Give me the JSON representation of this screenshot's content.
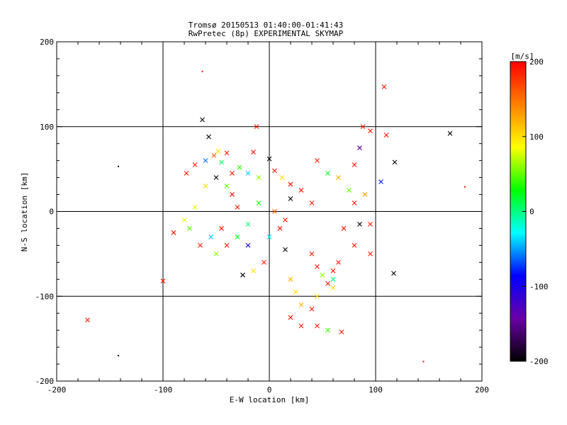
{
  "chart_data": {
    "type": "scatter",
    "title": "Tromsø 20150513 01:40:00-01:41:43",
    "subtitle": "RwPretec (8p) EXPERIMENTAL SKYMAP",
    "xlabel": "E-W location [km]",
    "ylabel": "N-S location [km]",
    "xlim": [
      -200,
      200
    ],
    "ylim": [
      -200,
      200
    ],
    "x_ticks": [
      "-200",
      "-100",
      "0",
      "100",
      "200"
    ],
    "y_ticks": [
      "-200",
      "-100",
      "0",
      "100",
      "200"
    ],
    "grid": true,
    "colorbar": {
      "label": "[m/s]",
      "range": [
        -200,
        200
      ],
      "ticks": [
        "200",
        "100",
        "0",
        "-100",
        "-200"
      ],
      "colors": [
        "#000000",
        "#6a00a8",
        "#0000ff",
        "#00ffff",
        "#00ff00",
        "#ffff00",
        "#ff8000",
        "#ff0000"
      ]
    },
    "markers": [
      {
        "x": -171,
        "y": -128,
        "v": 190,
        "m": "x"
      },
      {
        "x": -100,
        "y": -82,
        "v": 190,
        "m": "x"
      },
      {
        "x": -142,
        "y": -170,
        "v": -200,
        "m": "d"
      },
      {
        "x": -142,
        "y": 53,
        "v": -200,
        "m": "d"
      },
      {
        "x": -63,
        "y": 165,
        "v": 190,
        "m": "d"
      },
      {
        "x": -12,
        "y": 100,
        "v": 190,
        "m": "x"
      },
      {
        "x": 108,
        "y": 147,
        "v": 190,
        "m": "x"
      },
      {
        "x": 170,
        "y": 92,
        "v": -200,
        "m": "x"
      },
      {
        "x": 145,
        "y": -177,
        "v": 190,
        "m": "d"
      },
      {
        "x": 184,
        "y": 29,
        "v": 190,
        "m": "d"
      },
      {
        "x": 117,
        "y": -73,
        "v": -200,
        "m": "x"
      },
      {
        "x": 68,
        "y": -142,
        "v": 190,
        "m": "x"
      },
      {
        "x": -63,
        "y": 108,
        "v": -200,
        "m": "x"
      },
      {
        "x": -57,
        "y": 88,
        "v": -200,
        "m": "x"
      },
      {
        "x": -48,
        "y": 71,
        "v": 100,
        "m": "x"
      },
      {
        "x": -52,
        "y": 66,
        "v": 160,
        "m": "x"
      },
      {
        "x": -40,
        "y": 69,
        "v": 190,
        "m": "x"
      },
      {
        "x": -60,
        "y": 60,
        "v": -60,
        "m": "x"
      },
      {
        "x": -45,
        "y": 58,
        "v": 10,
        "m": "x"
      },
      {
        "x": -70,
        "y": 55,
        "v": 190,
        "m": "x"
      },
      {
        "x": -78,
        "y": 45,
        "v": 190,
        "m": "x"
      },
      {
        "x": -50,
        "y": 40,
        "v": -200,
        "m": "x"
      },
      {
        "x": -60,
        "y": 30,
        "v": 100,
        "m": "x"
      },
      {
        "x": -40,
        "y": 30,
        "v": 50,
        "m": "x"
      },
      {
        "x": -35,
        "y": 20,
        "v": 190,
        "m": "x"
      },
      {
        "x": -28,
        "y": 52,
        "v": 40,
        "m": "x"
      },
      {
        "x": -20,
        "y": 45,
        "v": -40,
        "m": "x"
      },
      {
        "x": -10,
        "y": 40,
        "v": 60,
        "m": "x"
      },
      {
        "x": 0,
        "y": 62,
        "v": -200,
        "m": "x"
      },
      {
        "x": 5,
        "y": 48,
        "v": 190,
        "m": "x"
      },
      {
        "x": 12,
        "y": 40,
        "v": 100,
        "m": "x"
      },
      {
        "x": 20,
        "y": 32,
        "v": 190,
        "m": "x"
      },
      {
        "x": 20,
        "y": 15,
        "v": -200,
        "m": "x"
      },
      {
        "x": 30,
        "y": 25,
        "v": 190,
        "m": "x"
      },
      {
        "x": 40,
        "y": 10,
        "v": 190,
        "m": "x"
      },
      {
        "x": 45,
        "y": 60,
        "v": 190,
        "m": "x"
      },
      {
        "x": 55,
        "y": 45,
        "v": 20,
        "m": "x"
      },
      {
        "x": 65,
        "y": 40,
        "v": 120,
        "m": "x"
      },
      {
        "x": 80,
        "y": 55,
        "v": 190,
        "m": "x"
      },
      {
        "x": 85,
        "y": 75,
        "v": -150,
        "m": "x"
      },
      {
        "x": 88,
        "y": 100,
        "v": 190,
        "m": "x"
      },
      {
        "x": 95,
        "y": 95,
        "v": 190,
        "m": "x"
      },
      {
        "x": 110,
        "y": 90,
        "v": 190,
        "m": "x"
      },
      {
        "x": 118,
        "y": 58,
        "v": -200,
        "m": "x"
      },
      {
        "x": 105,
        "y": 35,
        "v": -80,
        "m": "x"
      },
      {
        "x": 90,
        "y": 20,
        "v": 130,
        "m": "x"
      },
      {
        "x": 80,
        "y": 10,
        "v": 190,
        "m": "x"
      },
      {
        "x": -80,
        "y": -10,
        "v": 80,
        "m": "x"
      },
      {
        "x": -90,
        "y": -25,
        "v": 190,
        "m": "x"
      },
      {
        "x": -75,
        "y": -20,
        "v": 50,
        "m": "x"
      },
      {
        "x": -65,
        "y": -40,
        "v": 190,
        "m": "x"
      },
      {
        "x": -55,
        "y": -30,
        "v": -40,
        "m": "x"
      },
      {
        "x": -50,
        "y": -50,
        "v": 60,
        "m": "x"
      },
      {
        "x": -45,
        "y": -20,
        "v": 190,
        "m": "x"
      },
      {
        "x": -30,
        "y": -30,
        "v": 20,
        "m": "x"
      },
      {
        "x": -20,
        "y": -40,
        "v": -90,
        "m": "x"
      },
      {
        "x": -15,
        "y": -70,
        "v": 100,
        "m": "x"
      },
      {
        "x": -25,
        "y": -75,
        "v": -200,
        "m": "x"
      },
      {
        "x": -5,
        "y": -60,
        "v": 190,
        "m": "x"
      },
      {
        "x": 0,
        "y": -30,
        "v": -30,
        "m": "x"
      },
      {
        "x": 10,
        "y": -20,
        "v": 190,
        "m": "x"
      },
      {
        "x": 15,
        "y": -45,
        "v": -200,
        "m": "x"
      },
      {
        "x": 20,
        "y": -80,
        "v": 120,
        "m": "x"
      },
      {
        "x": 25,
        "y": -95,
        "v": 100,
        "m": "x"
      },
      {
        "x": 30,
        "y": -110,
        "v": 120,
        "m": "x"
      },
      {
        "x": 20,
        "y": -125,
        "v": 190,
        "m": "x"
      },
      {
        "x": 30,
        "y": -135,
        "v": 190,
        "m": "x"
      },
      {
        "x": 40,
        "y": -115,
        "v": 190,
        "m": "x"
      },
      {
        "x": 45,
        "y": -100,
        "v": 100,
        "m": "x"
      },
      {
        "x": 55,
        "y": -85,
        "v": 190,
        "m": "x"
      },
      {
        "x": 60,
        "y": -70,
        "v": 190,
        "m": "x"
      },
      {
        "x": 50,
        "y": -75,
        "v": 60,
        "m": "x"
      },
      {
        "x": 45,
        "y": -65,
        "v": 190,
        "m": "x"
      },
      {
        "x": 65,
        "y": -60,
        "v": 190,
        "m": "x"
      },
      {
        "x": 80,
        "y": -40,
        "v": 190,
        "m": "x"
      },
      {
        "x": 85,
        "y": -15,
        "v": -200,
        "m": "x"
      },
      {
        "x": 70,
        "y": -20,
        "v": 190,
        "m": "x"
      },
      {
        "x": 40,
        "y": -50,
        "v": 190,
        "m": "x"
      },
      {
        "x": 15,
        "y": -10,
        "v": 190,
        "m": "x"
      },
      {
        "x": 5,
        "y": 0,
        "v": 160,
        "m": "x"
      },
      {
        "x": -10,
        "y": 10,
        "v": 30,
        "m": "x"
      },
      {
        "x": -30,
        "y": 5,
        "v": 190,
        "m": "x"
      },
      {
        "x": -20,
        "y": -15,
        "v": 0,
        "m": "x"
      },
      {
        "x": -40,
        "y": -40,
        "v": 190,
        "m": "x"
      },
      {
        "x": 55,
        "y": -140,
        "v": 40,
        "m": "x"
      },
      {
        "x": 45,
        "y": -135,
        "v": 190,
        "m": "x"
      },
      {
        "x": 60,
        "y": -80,
        "v": 0,
        "m": "x"
      },
      {
        "x": 95,
        "y": -50,
        "v": 190,
        "m": "x"
      },
      {
        "x": -70,
        "y": 5,
        "v": 80,
        "m": "x"
      },
      {
        "x": -35,
        "y": 45,
        "v": 190,
        "m": "x"
      },
      {
        "x": -15,
        "y": 70,
        "v": 190,
        "m": "x"
      },
      {
        "x": 95,
        "y": -15,
        "v": 190,
        "m": "x"
      },
      {
        "x": 75,
        "y": 25,
        "v": 50,
        "m": "x"
      },
      {
        "x": 60,
        "y": -90,
        "v": 100,
        "m": "x"
      }
    ]
  }
}
